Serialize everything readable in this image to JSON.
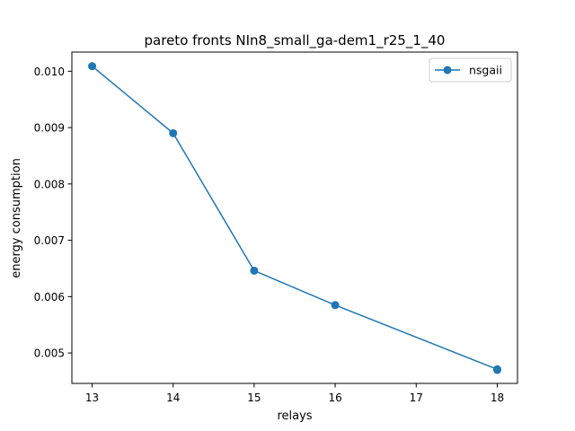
{
  "chart_data": {
    "type": "line",
    "title": "pareto fronts NIn8_small_ga-dem1_r25_1_40",
    "xlabel": "relays",
    "ylabel": "energy consumption",
    "xlim": [
      12.75,
      18.25
    ],
    "ylim": [
      0.00446,
      0.01034
    ],
    "xticks": [
      13,
      14,
      15,
      16,
      17,
      18
    ],
    "xtick_labels": [
      "13",
      "14",
      "15",
      "16",
      "17",
      "18"
    ],
    "yticks": [
      0.005,
      0.006,
      0.007,
      0.008,
      0.009,
      0.01
    ],
    "ytick_labels": [
      "0.005",
      "0.006",
      "0.007",
      "0.008",
      "0.009",
      "0.010"
    ],
    "grid": false,
    "legend_position": "top-right",
    "series": [
      {
        "name": "nsgaii",
        "color": "#1f77b4",
        "marker": "circle",
        "x": [
          13,
          14,
          15,
          16,
          18,
          18
        ],
        "y": [
          0.01009,
          0.0089,
          0.00646,
          0.00585,
          0.00471,
          0.0047
        ]
      }
    ]
  }
}
